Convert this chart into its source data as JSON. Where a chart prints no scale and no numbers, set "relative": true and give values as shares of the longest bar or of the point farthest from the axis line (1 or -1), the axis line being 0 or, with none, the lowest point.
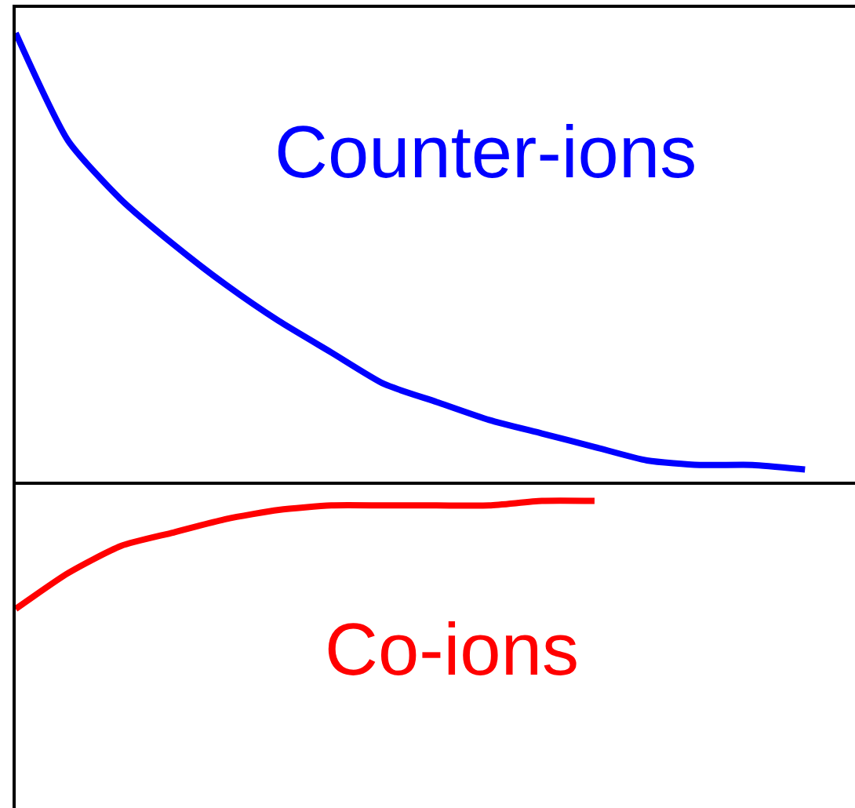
{
  "chart_data": {
    "type": "line",
    "relative": true,
    "categories": [
      null,
      null,
      null,
      null,
      null,
      null,
      null,
      null,
      null,
      null,
      null,
      null,
      null,
      null,
      null,
      null
    ],
    "series": [
      {
        "name": "Counter-ions",
        "color": "#0000ff",
        "values": [
          1.0,
          0.76,
          0.63,
          0.53,
          0.44,
          0.36,
          0.29,
          0.22,
          0.18,
          0.14,
          0.11,
          0.08,
          0.05,
          0.04,
          0.04,
          0.03
        ]
      },
      {
        "name": "Co-ions",
        "color": "#ff0000",
        "values": [
          -0.28,
          -0.2,
          -0.14,
          -0.11,
          -0.08,
          -0.06,
          -0.05,
          -0.05,
          -0.05,
          -0.05,
          -0.04,
          -0.04,
          null,
          null,
          null,
          null
        ]
      }
    ]
  }
}
